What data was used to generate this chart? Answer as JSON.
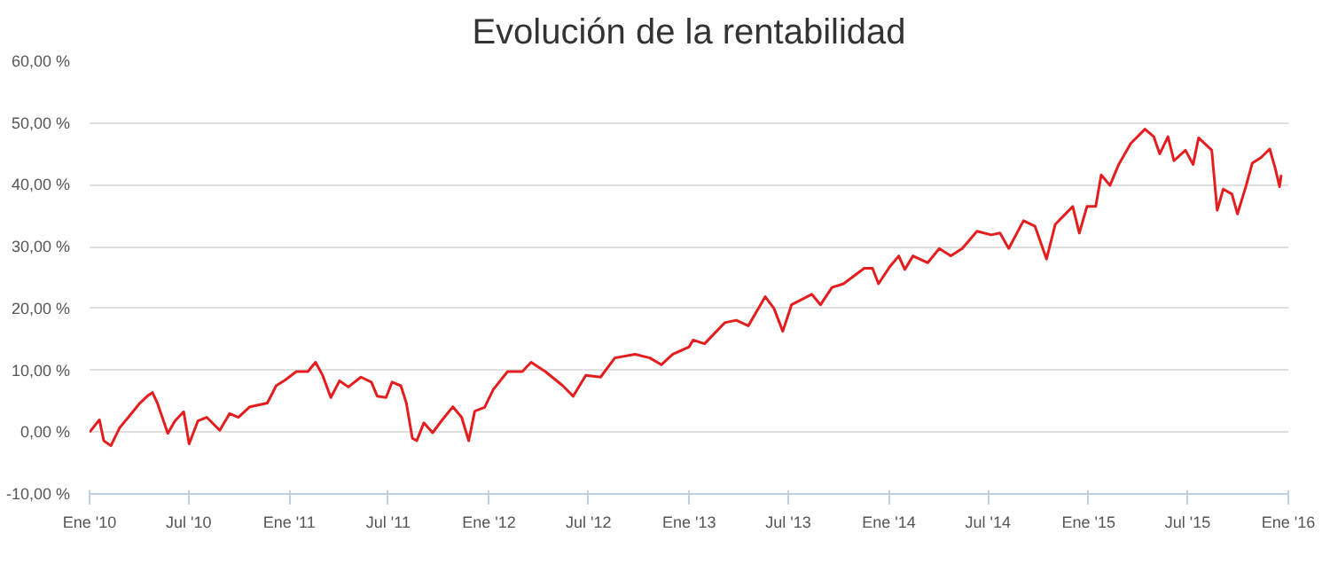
{
  "chart_data": {
    "type": "line",
    "title": "Evolución de la rentabilidad",
    "xlim": [
      "2010-01-01",
      "2016-01-01"
    ],
    "xticks": [
      {
        "value": "2010-01-01",
        "label": "Ene '10"
      },
      {
        "value": "2010-07-01",
        "label": "Jul '10"
      },
      {
        "value": "2011-01-01",
        "label": "Ene '11"
      },
      {
        "value": "2011-07-01",
        "label": "Jul '11"
      },
      {
        "value": "2012-01-01",
        "label": "Ene '12"
      },
      {
        "value": "2012-07-01",
        "label": "Jul '12"
      },
      {
        "value": "2013-01-01",
        "label": "Ene '13"
      },
      {
        "value": "2013-07-01",
        "label": "Jul '13"
      },
      {
        "value": "2014-01-01",
        "label": "Ene '14"
      },
      {
        "value": "2014-07-01",
        "label": "Jul '14"
      },
      {
        "value": "2015-01-01",
        "label": "Ene '15"
      },
      {
        "value": "2015-07-01",
        "label": "Jul '15"
      },
      {
        "value": "2016-01-01",
        "label": "Ene '16"
      }
    ],
    "ylim": [
      -10,
      60
    ],
    "yticks": [
      {
        "value": -10,
        "label": "-10,00 %"
      },
      {
        "value": 0,
        "label": "0,00 %"
      },
      {
        "value": 10,
        "label": "10,00 %"
      },
      {
        "value": 20,
        "label": "20,00 %"
      },
      {
        "value": 30,
        "label": "30,00 %"
      },
      {
        "value": 40,
        "label": "40,00 %"
      },
      {
        "value": 50,
        "label": "50,00 %"
      },
      {
        "value": 60,
        "label": "60,00 %"
      }
    ],
    "grid": "y",
    "marker": "none",
    "line_style": "solid",
    "x": [
      "2010-01-01",
      "2010-01-19",
      "2010-01-27",
      "2010-02-09",
      "2010-02-25",
      "2010-03-13",
      "2010-04-03",
      "2010-04-19",
      "2010-04-26",
      "2010-05-05",
      "2010-05-24",
      "2010-06-06",
      "2010-06-22",
      "2010-07-02",
      "2010-07-18",
      "2010-08-03",
      "2010-08-27",
      "2010-09-14",
      "2010-09-30",
      "2010-10-21",
      "2010-11-22",
      "2010-12-08",
      "2010-12-24",
      "2011-01-14",
      "2011-02-04",
      "2011-02-18",
      "2011-03-03",
      "2011-03-18",
      "2011-04-03",
      "2011-04-19",
      "2011-05-12",
      "2011-05-31",
      "2011-06-11",
      "2011-06-27",
      "2011-07-08",
      "2011-07-24",
      "2011-08-03",
      "2011-08-14",
      "2011-08-22",
      "2011-09-04",
      "2011-09-20",
      "2011-10-06",
      "2011-10-27",
      "2011-11-12",
      "2011-11-25",
      "2011-12-06",
      "2011-12-24",
      "2012-01-09",
      "2012-02-04",
      "2012-03-02",
      "2012-03-18",
      "2012-04-13",
      "2012-05-15",
      "2012-06-03",
      "2012-06-26",
      "2012-07-23",
      "2012-08-18",
      "2012-09-24",
      "2012-10-21",
      "2012-11-11",
      "2012-12-02",
      "2013-01-01",
      "2013-01-08",
      "2013-01-29",
      "2013-03-07",
      "2013-03-28",
      "2013-04-19",
      "2013-05-20",
      "2013-06-05",
      "2013-06-21",
      "2013-07-07",
      "2013-08-13",
      "2013-08-29",
      "2013-09-19",
      "2013-10-10",
      "2013-11-17",
      "2013-12-02",
      "2013-12-13",
      "2014-01-03",
      "2014-01-19",
      "2014-01-30",
      "2014-02-14",
      "2014-03-13",
      "2014-04-03",
      "2014-04-24",
      "2014-05-15",
      "2014-06-11",
      "2014-07-07",
      "2014-07-23",
      "2014-08-08",
      "2014-09-04",
      "2014-09-25",
      "2014-10-16",
      "2014-11-01",
      "2014-12-03",
      "2014-12-15",
      "2014-12-29",
      "2015-01-14",
      "2015-01-24",
      "2015-02-09",
      "2015-02-25",
      "2015-03-19",
      "2015-04-14",
      "2015-04-30",
      "2015-05-11",
      "2015-05-26",
      "2015-06-06",
      "2015-06-27",
      "2015-07-11",
      "2015-07-21",
      "2015-08-14",
      "2015-08-24",
      "2015-09-04",
      "2015-09-20",
      "2015-09-30",
      "2015-10-16",
      "2015-10-27",
      "2015-11-12",
      "2015-11-28",
      "2015-12-08",
      "2015-12-16",
      "2015-12-19"
    ],
    "series": [
      {
        "color": "#e41e1e",
        "values": [
          0,
          2.0,
          -1.4,
          -2.2,
          0.7,
          2.4,
          4.7,
          6.0,
          6.4,
          4.7,
          -0.2,
          1.8,
          3.3,
          -1.9,
          1.8,
          2.4,
          0.3,
          3.0,
          2.4,
          4.1,
          4.7,
          7.5,
          8.4,
          9.8,
          9.8,
          11.3,
          9.2,
          5.6,
          8.3,
          7.3,
          8.9,
          8.1,
          5.8,
          5.6,
          8.1,
          7.5,
          4.7,
          -1.0,
          -1.4,
          1.5,
          -0.1,
          1.8,
          4.1,
          2.4,
          -1.4,
          3.4,
          4.0,
          6.9,
          9.8,
          9.8,
          11.3,
          9.8,
          7.5,
          5.8,
          9.2,
          8.9,
          12.0,
          12.6,
          12.0,
          10.9,
          12.6,
          13.8,
          14.9,
          14.3,
          17.7,
          18.1,
          17.2,
          21.9,
          20.0,
          16.3,
          20.6,
          22.3,
          20.6,
          23.4,
          24.0,
          26.5,
          26.5,
          24.0,
          26.8,
          28.5,
          26.3,
          28.5,
          27.4,
          29.7,
          28.5,
          29.7,
          32.5,
          31.9,
          32.2,
          29.7,
          34.2,
          33.3,
          28.0,
          33.6,
          36.5,
          32.2,
          36.5,
          36.5,
          41.6,
          39.9,
          43.3,
          46.7,
          49.0,
          47.8,
          45.0,
          47.8,
          43.9,
          45.6,
          43.3,
          47.6,
          45.6,
          35.9,
          39.3,
          38.5,
          35.3,
          39.9,
          43.5,
          44.4,
          45.8,
          42.7,
          39.7,
          41.6
        ]
      }
    ]
  }
}
